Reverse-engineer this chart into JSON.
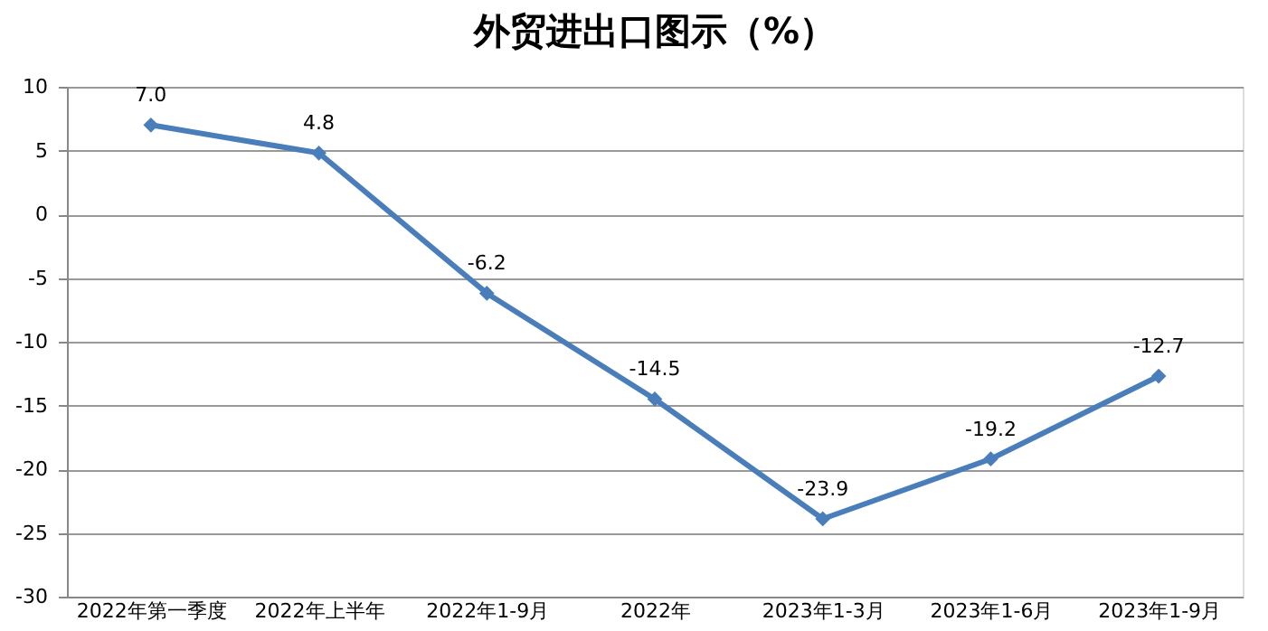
{
  "chart_data": {
    "type": "line",
    "title": "外贸进出口图示（%）",
    "categories": [
      "2022年第一季度",
      "2022年上半年",
      "2022年1-9月",
      "2022年",
      "2023年1-3月",
      "2023年1-6月",
      "2023年1-9月"
    ],
    "series": [
      {
        "color": "#4a7ebb",
        "values": [
          7.0,
          4.8,
          -6.2,
          -14.5,
          -23.9,
          -19.2,
          -12.7
        ],
        "value_labels": [
          "7.0",
          "4.8",
          "-6.2",
          "-14.5",
          "-23.9",
          "-19.2",
          "-12.7"
        ]
      }
    ],
    "ylim": [
      -30,
      10
    ],
    "yticks": [
      -30,
      -25,
      -20,
      -15,
      -10,
      -5,
      0,
      5,
      10
    ],
    "grid": "y",
    "marker": "diamond",
    "line_style": "solid",
    "legend": false
  }
}
